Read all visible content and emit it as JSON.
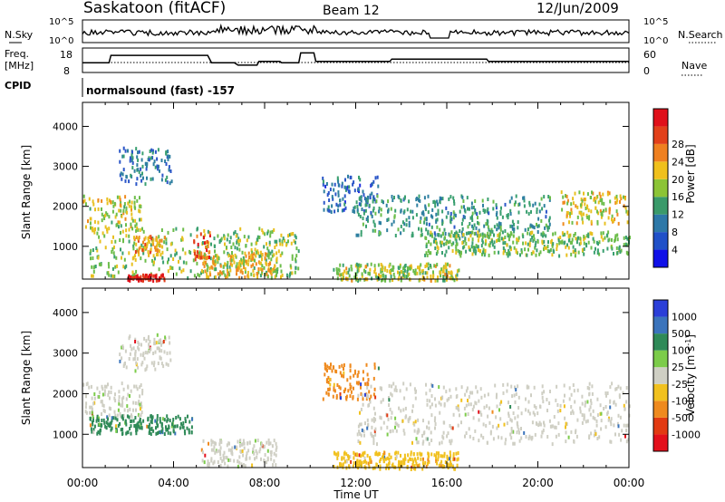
{
  "header": {
    "station": "Saskatoon (fitACF)",
    "beam": "Beam 12",
    "date": "12/Jun/2009"
  },
  "summary": {
    "nsky_label": "N.Sky",
    "nsky_ticks": [
      "10^5",
      "10^0"
    ],
    "nsearch_label": "N.Search",
    "nsearch_ticks": [
      "10^5",
      "10^0"
    ],
    "freq_label_1": "Freq.",
    "freq_label_2": "[MHz]",
    "freq_ticks": [
      "18",
      "8"
    ],
    "nave_label": "Nave",
    "nave_ticks": [
      "60",
      "0"
    ],
    "cpid_label": "CPID",
    "cpid_text": "normalsound (fast) -157"
  },
  "chart_data": [
    {
      "type": "line",
      "title": "Freq. [MHz]",
      "ylim": [
        8,
        18
      ],
      "x": [
        "00:00",
        "01:10",
        "01:15",
        "05:30",
        "05:40",
        "06:40",
        "06:50",
        "07:40",
        "07:45",
        "08:40",
        "08:45",
        "09:30",
        "09:35",
        "10:10",
        "10:15",
        "13:30",
        "13:35",
        "17:45",
        "17:50",
        "00:00"
      ],
      "series": [
        {
          "name": "Freq.",
          "values": [
            12,
            12,
            15,
            15,
            12,
            12,
            11,
            11,
            12.5,
            12.5,
            12,
            12,
            16,
            16,
            12.5,
            12.5,
            13.5,
            13.5,
            12.5,
            12.5
          ]
        }
      ]
    },
    {
      "type": "heatmap",
      "title": "Power [dB]",
      "xlabel": "Time UT",
      "ylabel": "Slant Range [km]",
      "xlim": [
        "00:00",
        "24:00"
      ],
      "ylim": [
        180,
        4600
      ],
      "xticks": [
        "00:00",
        "04:00",
        "08:00",
        "12:00",
        "16:00",
        "20:00",
        "00:00"
      ],
      "yticks": [
        1000,
        2000,
        3000,
        4000
      ],
      "colorbar": {
        "label": "Power [dB]",
        "ticks": [
          "4",
          "8",
          "12",
          "16",
          "20",
          "24",
          "28"
        ],
        "range": [
          0,
          30
        ]
      },
      "regions": [
        {
          "t": [
            1.6,
            3.9
          ],
          "r": [
            2600,
            3500
          ],
          "level": 8
        },
        {
          "t": [
            0.0,
            2.6
          ],
          "r": [
            1450,
            2300
          ],
          "level": 18
        },
        {
          "t": [
            0.3,
            9.5
          ],
          "r": [
            250,
            1500
          ],
          "level": 16
        },
        {
          "t": [
            2.2,
            3.6
          ],
          "r": [
            800,
            1300
          ],
          "level": 22
        },
        {
          "t": [
            4.8,
            5.6
          ],
          "r": [
            700,
            1400
          ],
          "level": 26
        },
        {
          "t": [
            5.2,
            8.5
          ],
          "r": [
            250,
            900
          ],
          "level": 20
        },
        {
          "t": [
            1.9,
            3.6
          ],
          "r": [
            180,
            330
          ],
          "level": 29
        },
        {
          "t": [
            10.5,
            13.0
          ],
          "r": [
            1900,
            2800
          ],
          "level": 7
        },
        {
          "t": [
            11.0,
            16.5
          ],
          "r": [
            180,
            600
          ],
          "level": 17
        },
        {
          "t": [
            12.0,
            20.5
          ],
          "r": [
            1300,
            2300
          ],
          "level": 11
        },
        {
          "t": [
            15.0,
            24.0
          ],
          "r": [
            800,
            1400
          ],
          "level": 15
        },
        {
          "t": [
            21.0,
            24.0
          ],
          "r": [
            1600,
            2400
          ],
          "level": 19
        }
      ]
    },
    {
      "type": "heatmap",
      "title": "Velocity [m s-1]",
      "xlabel": "Time UT",
      "ylabel": "Slant Range [km]",
      "xlim": [
        "00:00",
        "24:00"
      ],
      "ylim": [
        180,
        4600
      ],
      "xticks": [
        "00:00",
        "04:00",
        "08:00",
        "12:00",
        "16:00",
        "20:00",
        "00:00"
      ],
      "yticks": [
        1000,
        2000,
        3000,
        4000
      ],
      "colorbar": {
        "label": "Velocity [m s-1]",
        "ticks": [
          "1000",
          "500",
          "100",
          "25",
          "-25",
          "-100",
          "-500",
          "-1000"
        ]
      },
      "regions": [
        {
          "t": [
            1.6,
            3.9
          ],
          "r": [
            2600,
            3500
          ],
          "level": "25 to -25"
        },
        {
          "t": [
            0.0,
            2.6
          ],
          "r": [
            1450,
            2300
          ],
          "level": "25 to -25"
        },
        {
          "t": [
            0.3,
            4.8
          ],
          "r": [
            1050,
            1500
          ],
          "level": "100 to 500"
        },
        {
          "t": [
            5.2,
            8.5
          ],
          "r": [
            250,
            900
          ],
          "level": "25 to -25"
        },
        {
          "t": [
            10.5,
            13.0
          ],
          "r": [
            1900,
            2800
          ],
          "level": "-100 to -500"
        },
        {
          "t": [
            11.0,
            16.5
          ],
          "r": [
            180,
            600
          ],
          "level": "-25 to -100"
        },
        {
          "t": [
            12.0,
            24.0
          ],
          "r": [
            800,
            2300
          ],
          "level": "25 to -25"
        }
      ]
    }
  ],
  "footer": {
    "xlabel": "Time UT"
  }
}
